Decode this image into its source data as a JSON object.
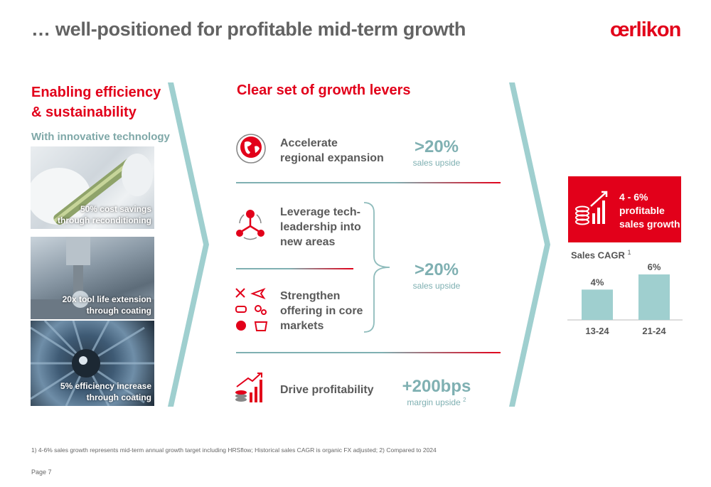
{
  "header": {
    "title": "… well-positioned for profitable mid-term growth",
    "logo_text": "œrlikon"
  },
  "left": {
    "heading_line1": "Enabling efficiency",
    "heading_line2": "& sustainability",
    "subheading": "With innovative technology",
    "photos": [
      {
        "caption_line1": "50% cost savings",
        "caption_line2": "through reconditioning"
      },
      {
        "caption_line1": "20x tool life extension",
        "caption_line2": "through coating"
      },
      {
        "caption_line1": "5% efficiency increase",
        "caption_line2": "through coating"
      }
    ]
  },
  "middle": {
    "heading": "Clear set of growth levers",
    "levers": [
      {
        "label_line1": "Accelerate",
        "label_line2": "regional expansion",
        "icon": "globe-icon"
      },
      {
        "label_line1": "Leverage tech-",
        "label_line2": "leadership into",
        "label_line3": "new areas",
        "icon": "network-icon"
      },
      {
        "label_line1": "Strengthen",
        "label_line2": "offering in core",
        "label_line3": "markets",
        "icon": "markets-icon"
      },
      {
        "label_line1": "Drive profitability",
        "icon": "profit-chart-icon"
      }
    ],
    "metrics": [
      {
        "value": ">20%",
        "sub": "sales upside"
      },
      {
        "value": ">20%",
        "sub": "sales upside"
      },
      {
        "value": "+200bps",
        "sub": "margin upside",
        "sup": "2"
      }
    ]
  },
  "right": {
    "kpi_line1": "4 - 6%",
    "kpi_line2": "profitable",
    "kpi_line3": "sales growth",
    "cagr_label": "Sales CAGR",
    "cagr_sup": "1"
  },
  "chart_data": {
    "type": "bar",
    "categories": [
      "13-24",
      "21-24"
    ],
    "values": [
      4,
      6
    ],
    "value_labels": [
      "4%",
      "6%"
    ],
    "title": "Sales CAGR",
    "ylim": [
      0,
      6
    ],
    "grid": false,
    "bar_color": "#9fcfcf"
  },
  "colors": {
    "accent_red": "#e2001a",
    "teal": "#7fb0b2",
    "chevron": "#9fcfcf"
  },
  "footer": {
    "footnote": "1) 4-6% sales growth represents mid-term annual growth target including HRSflow; Historical sales CAGR is organic FX adjusted; 2) Compared to 2024",
    "page": "Page 7"
  }
}
